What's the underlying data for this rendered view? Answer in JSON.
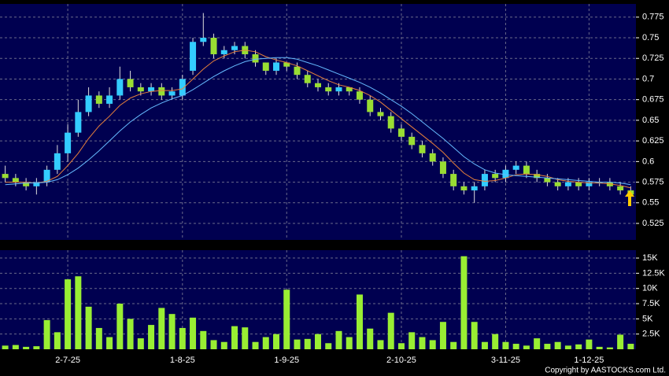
{
  "chart_data": [
    {
      "type": "candlestick",
      "categories": [
        null,
        null,
        null,
        null,
        null,
        null,
        "2-7-25",
        null,
        null,
        null,
        null,
        null,
        null,
        null,
        null,
        null,
        null,
        "1-8-25",
        null,
        null,
        null,
        null,
        null,
        null,
        null,
        null,
        null,
        "1-9-25",
        null,
        null,
        null,
        null,
        null,
        null,
        null,
        null,
        null,
        null,
        "2-10-25",
        null,
        null,
        null,
        null,
        null,
        null,
        null,
        null,
        null,
        "3-11-25",
        null,
        null,
        null,
        null,
        null,
        null,
        null,
        "1-12-25",
        null,
        null,
        null,
        null
      ],
      "open": [
        0.585,
        0.58,
        0.575,
        0.57,
        0.575,
        0.59,
        0.61,
        0.635,
        0.66,
        0.68,
        0.67,
        0.68,
        0.7,
        0.69,
        0.685,
        0.69,
        0.68,
        0.68,
        0.71,
        0.745,
        0.75,
        0.73,
        0.735,
        0.74,
        0.73,
        0.72,
        0.71,
        0.72,
        0.715,
        0.705,
        0.695,
        0.69,
        0.685,
        0.69,
        0.685,
        0.675,
        0.66,
        0.655,
        0.64,
        0.63,
        0.62,
        0.61,
        0.6,
        0.585,
        0.57,
        0.565,
        0.57,
        0.585,
        0.58,
        0.59,
        0.595,
        0.585,
        0.58,
        0.575,
        0.57,
        0.575,
        0.57,
        0.575,
        0.575,
        0.57,
        0.565
      ],
      "high": [
        0.595,
        0.585,
        0.58,
        0.58,
        0.595,
        0.62,
        0.645,
        0.675,
        0.69,
        0.685,
        0.69,
        0.715,
        0.71,
        0.695,
        0.695,
        0.695,
        0.69,
        0.705,
        0.75,
        0.78,
        0.755,
        0.74,
        0.745,
        0.745,
        0.735,
        0.72,
        0.725,
        0.72,
        0.72,
        0.71,
        0.7,
        0.695,
        0.695,
        0.69,
        0.69,
        0.68,
        0.665,
        0.66,
        0.645,
        0.635,
        0.625,
        0.615,
        0.605,
        0.59,
        0.575,
        0.575,
        0.59,
        0.59,
        0.595,
        0.6,
        0.6,
        0.59,
        0.585,
        0.58,
        0.58,
        0.58,
        0.58,
        0.58,
        0.58,
        0.575,
        0.57
      ],
      "low": [
        0.575,
        0.57,
        0.565,
        0.56,
        0.57,
        0.585,
        0.6,
        0.63,
        0.655,
        0.665,
        0.665,
        0.675,
        0.685,
        0.68,
        0.68,
        0.675,
        0.675,
        0.675,
        0.705,
        0.74,
        0.725,
        0.725,
        0.73,
        0.725,
        0.715,
        0.705,
        0.705,
        0.71,
        0.7,
        0.69,
        0.685,
        0.68,
        0.68,
        0.68,
        0.67,
        0.655,
        0.65,
        0.635,
        0.625,
        0.615,
        0.605,
        0.595,
        0.58,
        0.565,
        0.56,
        0.55,
        0.565,
        0.575,
        0.575,
        0.585,
        0.58,
        0.575,
        0.57,
        0.565,
        0.565,
        0.565,
        0.565,
        0.57,
        0.565,
        0.56,
        0.55
      ],
      "close": [
        0.58,
        0.575,
        0.57,
        0.575,
        0.59,
        0.61,
        0.635,
        0.66,
        0.68,
        0.67,
        0.68,
        0.7,
        0.69,
        0.685,
        0.69,
        0.68,
        0.685,
        0.7,
        0.745,
        0.75,
        0.73,
        0.735,
        0.74,
        0.73,
        0.72,
        0.71,
        0.72,
        0.715,
        0.705,
        0.695,
        0.69,
        0.685,
        0.69,
        0.685,
        0.675,
        0.66,
        0.655,
        0.64,
        0.63,
        0.62,
        0.61,
        0.6,
        0.585,
        0.57,
        0.565,
        0.57,
        0.585,
        0.58,
        0.59,
        0.595,
        0.585,
        0.58,
        0.575,
        0.57,
        0.575,
        0.57,
        0.575,
        0.575,
        0.57,
        0.565,
        0.56
      ],
      "up_color": "#33ccff",
      "down_color": "#99dd33",
      "moving_averages": [
        {
          "color": "#e8803a",
          "values": [
            0.575,
            0.575,
            0.575,
            0.574,
            0.576,
            0.582,
            0.595,
            0.61,
            0.628,
            0.643,
            0.655,
            0.668,
            0.677,
            0.682,
            0.685,
            0.686,
            0.686,
            0.688,
            0.7,
            0.712,
            0.722,
            0.728,
            0.733,
            0.735,
            0.733,
            0.727,
            0.723,
            0.72,
            0.716,
            0.71,
            0.704,
            0.698,
            0.693,
            0.69,
            0.686,
            0.68,
            0.672,
            0.662,
            0.652,
            0.642,
            0.632,
            0.622,
            0.611,
            0.598,
            0.586,
            0.578,
            0.576,
            0.577,
            0.58,
            0.584,
            0.585,
            0.584,
            0.582,
            0.578,
            0.576,
            0.575,
            0.574,
            0.574,
            0.573,
            0.571,
            0.568
          ]
        },
        {
          "color": "#66bbff",
          "values": [
            0.572,
            0.573,
            0.574,
            0.574,
            0.575,
            0.578,
            0.584,
            0.592,
            0.602,
            0.613,
            0.625,
            0.637,
            0.648,
            0.657,
            0.665,
            0.671,
            0.676,
            0.68,
            0.687,
            0.695,
            0.703,
            0.71,
            0.716,
            0.721,
            0.724,
            0.725,
            0.726,
            0.726,
            0.724,
            0.72,
            0.716,
            0.711,
            0.706,
            0.701,
            0.696,
            0.69,
            0.683,
            0.675,
            0.667,
            0.658,
            0.648,
            0.638,
            0.628,
            0.617,
            0.606,
            0.597,
            0.59,
            0.586,
            0.584,
            0.583,
            0.582,
            0.581,
            0.58,
            0.579,
            0.578,
            0.577,
            0.576,
            0.575,
            0.575,
            0.574,
            0.572
          ]
        }
      ],
      "ylim": [
        0.505,
        0.791
      ],
      "yticks": [
        0.525,
        0.55,
        0.575,
        0.6,
        0.625,
        0.65,
        0.675,
        0.7,
        0.725,
        0.75,
        0.775
      ],
      "grid": true
    },
    {
      "type": "bar",
      "values": [
        600,
        700,
        400,
        500,
        4800,
        2800,
        11500,
        12000,
        7000,
        3500,
        2000,
        7500,
        5000,
        1800,
        4000,
        6800,
        5800,
        3500,
        5200,
        3000,
        1500,
        1200,
        3800,
        3600,
        1200,
        2000,
        2500,
        9800,
        1600,
        1700,
        2500,
        1000,
        3000,
        2000,
        9000,
        3400,
        1500,
        6000,
        1000,
        2800,
        2000,
        1500,
        4500,
        1200,
        15300,
        4500,
        1200,
        2500,
        1200,
        900,
        600,
        1800,
        900,
        1200,
        600,
        800,
        1600,
        400,
        300,
        2400,
        900
      ],
      "color": "#99ee33",
      "ylim": [
        0,
        16300
      ],
      "yticks": [
        {
          "value": 2500,
          "label": "2.5K"
        },
        {
          "value": 5000,
          "label": "5K"
        },
        {
          "value": 7500,
          "label": "7.5K"
        },
        {
          "value": 10000,
          "label": "10K"
        },
        {
          "value": 12500,
          "label": "12.5K"
        },
        {
          "value": 15000,
          "label": "15K"
        }
      ],
      "grid": true
    }
  ],
  "footer": "Copyright by AASTOCKS.com Ltd."
}
